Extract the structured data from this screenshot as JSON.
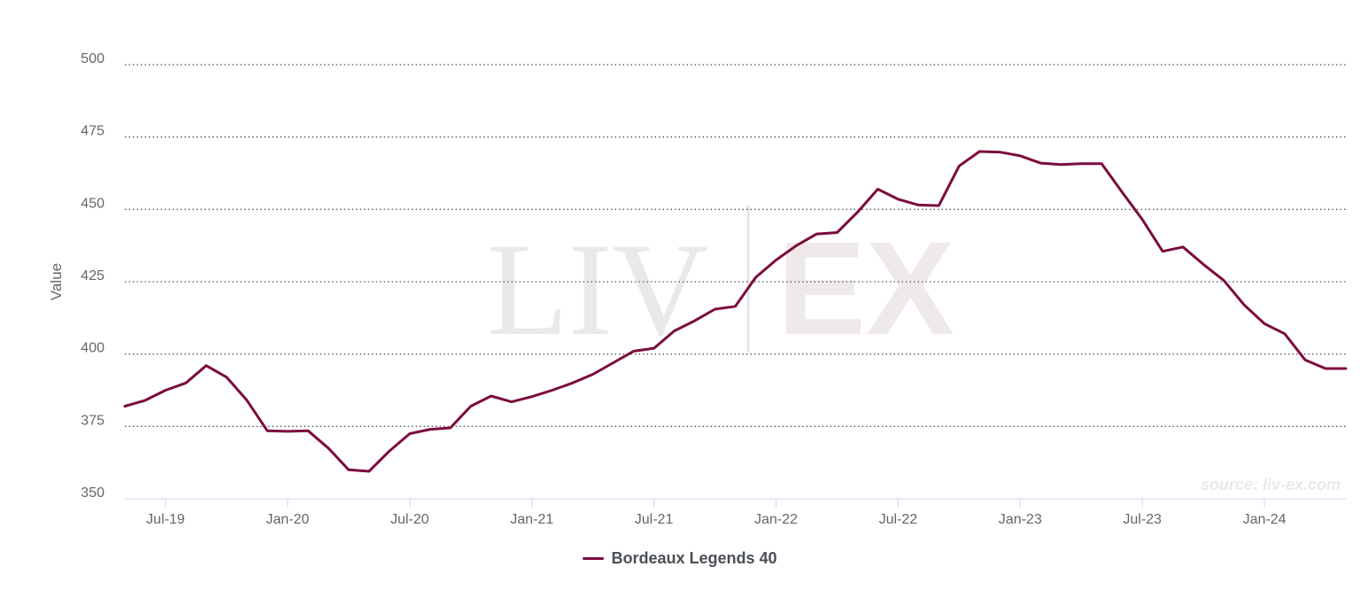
{
  "chart_data": {
    "type": "line",
    "ylabel": "Value",
    "ylim": [
      350,
      500
    ],
    "yticks": [
      350,
      375,
      400,
      425,
      450,
      475,
      500
    ],
    "xlim": [
      "2019-05",
      "2024-05"
    ],
    "xticks": [
      {
        "date": "2019-07",
        "label": "Jul-19"
      },
      {
        "date": "2020-01",
        "label": "Jan-20"
      },
      {
        "date": "2020-07",
        "label": "Jul-20"
      },
      {
        "date": "2021-01",
        "label": "Jan-21"
      },
      {
        "date": "2021-07",
        "label": "Jul-21"
      },
      {
        "date": "2022-01",
        "label": "Jan-22"
      },
      {
        "date": "2022-07",
        "label": "Jul-22"
      },
      {
        "date": "2023-01",
        "label": "Jan-23"
      },
      {
        "date": "2023-07",
        "label": "Jul-23"
      },
      {
        "date": "2024-01",
        "label": "Jan-24"
      }
    ],
    "grid": true,
    "legend_position": "bottom-center",
    "series": [
      {
        "name": "Bordeaux Legends 40",
        "color": "#7b0c3e",
        "x": [
          "2019-05",
          "2019-06",
          "2019-07",
          "2019-08",
          "2019-09",
          "2019-10",
          "2019-11",
          "2019-12",
          "2020-01",
          "2020-02",
          "2020-03",
          "2020-04",
          "2020-05",
          "2020-06",
          "2020-07",
          "2020-08",
          "2020-09",
          "2020-10",
          "2020-11",
          "2020-12",
          "2021-01",
          "2021-02",
          "2021-03",
          "2021-04",
          "2021-05",
          "2021-06",
          "2021-07",
          "2021-08",
          "2021-09",
          "2021-10",
          "2021-11",
          "2021-12",
          "2022-01",
          "2022-02",
          "2022-03",
          "2022-04",
          "2022-05",
          "2022-06",
          "2022-07",
          "2022-08",
          "2022-09",
          "2022-10",
          "2022-11",
          "2022-12",
          "2023-01",
          "2023-02",
          "2023-03",
          "2023-04",
          "2023-05",
          "2023-06",
          "2023-07",
          "2023-08",
          "2023-09",
          "2023-10",
          "2023-11",
          "2023-12",
          "2024-01",
          "2024-02",
          "2024-03",
          "2024-04",
          "2024-05"
        ],
        "values": [
          382,
          384,
          387.5,
          390,
          396,
          392,
          384,
          373.5,
          373.3,
          373.5,
          367.5,
          360,
          359.5,
          366.5,
          372.5,
          374,
          374.5,
          382,
          385.5,
          383.5,
          385.3,
          387.5,
          390,
          393,
          397,
          401,
          402,
          408,
          411.5,
          415.5,
          416.5,
          426.5,
          432.5,
          437.5,
          441.5,
          442,
          449,
          457,
          453.5,
          451.5,
          451.3,
          465,
          470,
          469.8,
          468.5,
          466,
          465.5,
          465.8,
          465.8,
          456,
          446.5,
          435.5,
          437,
          431,
          425.5,
          417,
          410.5,
          407,
          398,
          395,
          395
        ]
      }
    ],
    "watermark": {
      "left": "LIV",
      "right": "EX"
    },
    "source": "source: liv-ex.com"
  }
}
